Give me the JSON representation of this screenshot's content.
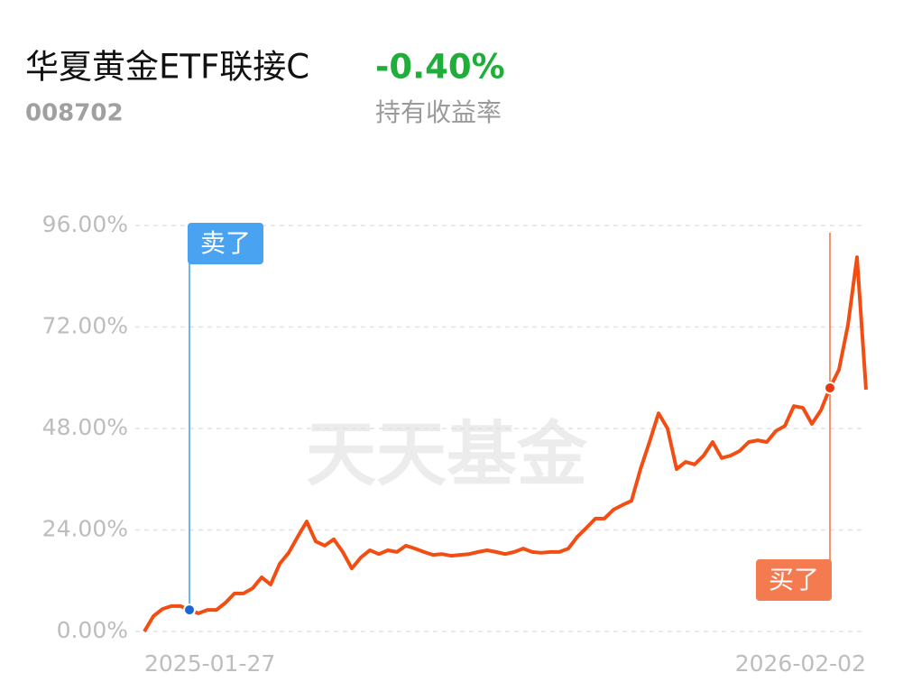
{
  "fund": {
    "name": "华夏黄金ETF联接C",
    "code": "008702",
    "return": "-0.40%",
    "return_label": "持有收益率"
  },
  "chart_data": {
    "type": "line",
    "watermark": "天天基金",
    "categories": [
      "2025-01-27",
      null,
      null,
      null,
      null,
      null,
      null,
      null,
      null,
      null,
      null,
      null,
      null,
      null,
      null,
      null,
      null,
      null,
      null,
      null,
      null,
      null,
      null,
      null,
      null,
      null,
      null,
      null,
      null,
      null,
      null,
      null,
      null,
      null,
      null,
      null,
      null,
      null,
      null,
      null,
      null,
      null,
      null,
      null,
      null,
      null,
      null,
      null,
      null,
      null,
      null,
      null,
      null,
      null,
      null,
      null,
      null,
      null,
      null,
      null,
      null,
      null,
      null,
      null,
      null,
      null,
      null,
      null,
      null,
      null,
      null,
      null,
      null,
      null,
      null,
      null,
      null,
      null,
      null,
      null,
      "2026-02-02"
    ],
    "series": [
      {
        "color": "#f24e14",
        "values": [
          0,
          3.6,
          5.3,
          6.0,
          6.0,
          5.1,
          4.3,
          5.1,
          5.1,
          6.8,
          9.0,
          9.0,
          10.2,
          12.8,
          11.1,
          16.0,
          18.6,
          22.4,
          26.0,
          21.3,
          20.3,
          21.8,
          18.8,
          14.9,
          17.5,
          19.2,
          18.3,
          19.2,
          18.8,
          20.3,
          19.6,
          18.8,
          18.1,
          18.3,
          17.9,
          18.1,
          18.3,
          18.8,
          19.2,
          18.8,
          18.3,
          18.8,
          19.6,
          18.8,
          18.6,
          18.8,
          18.8,
          19.6,
          22.4,
          24.5,
          26.7,
          26.7,
          28.8,
          29.9,
          30.9,
          38.4,
          44.8,
          51.6,
          48.0,
          38.4,
          40.1,
          39.5,
          41.6,
          44.8,
          41.0,
          41.6,
          42.7,
          44.8,
          45.2,
          44.8,
          47.4,
          48.6,
          53.3,
          52.9,
          49.1,
          52.3,
          57.6,
          61.9,
          72.5,
          88.5,
          57.2
        ]
      }
    ],
    "ylim": [
      0,
      96
    ],
    "yticks": [
      {
        "value": 0,
        "label": "0.00%"
      },
      {
        "value": 24,
        "label": "24.00%"
      },
      {
        "value": 48,
        "label": "48.00%"
      },
      {
        "value": 72,
        "label": "72.00%"
      },
      {
        "value": 96,
        "label": "96.00%"
      }
    ],
    "grid": true,
    "annotations": [
      {
        "text": "卖了",
        "x": 5,
        "value": 5.1,
        "color": "#4aa3f0",
        "dot": "#1f63d6"
      },
      {
        "text": "买了",
        "x": 76,
        "value": 57.6,
        "color": "#f47a50",
        "dot": "#e8380f"
      }
    ]
  }
}
